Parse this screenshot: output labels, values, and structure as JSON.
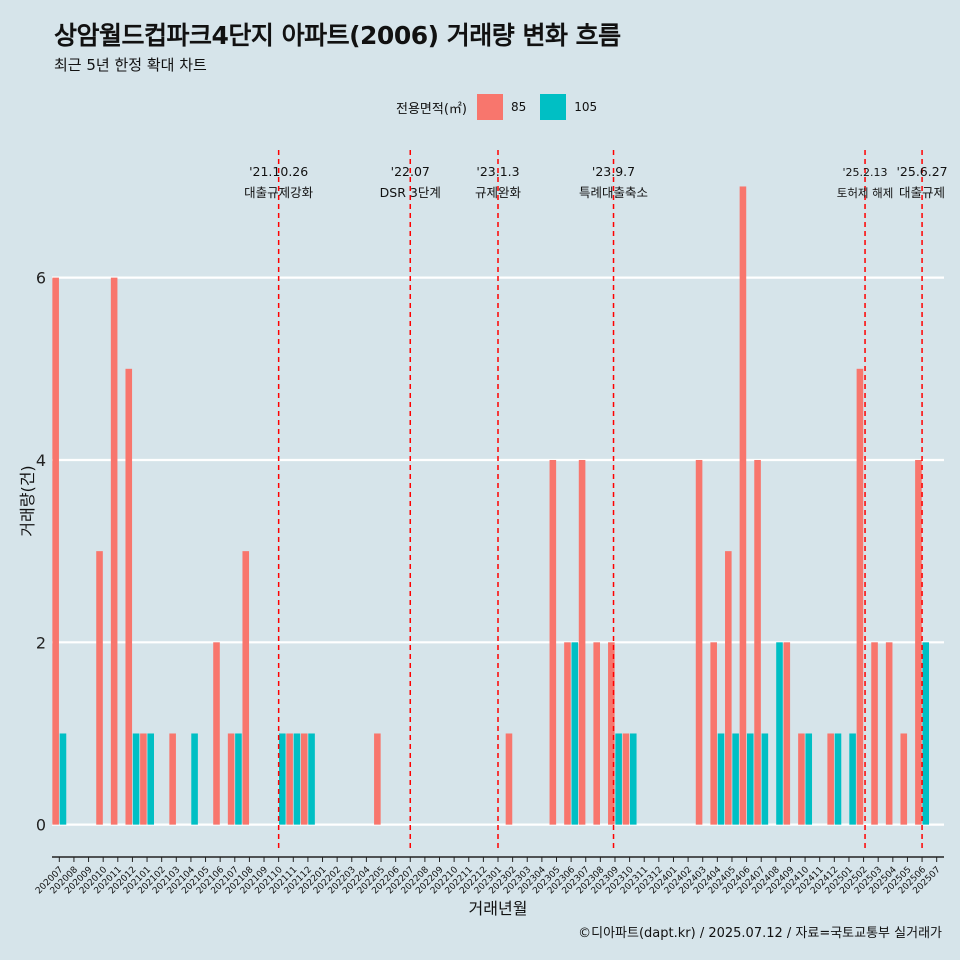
{
  "title": "상암월드컵파크4단지 아파트(2006) 거래량 변화 흐름",
  "subtitle": "최근 5년 한정 확대 차트",
  "caption": "©디아파트(dapt.kr) / 2025.07.12 / 자료=국토교통부 실거래가",
  "legend": {
    "title": "전용면적(㎡)",
    "items": [
      {
        "label": "85",
        "color": "#f8766d"
      },
      {
        "label": "105",
        "color": "#00bfc4"
      }
    ]
  },
  "chart_data": {
    "type": "bar",
    "title": "상암월드컵파크4단지 아파트(2006) 거래량 변화 흐름",
    "xlabel": "거래년월",
    "ylabel": "거래량(건)",
    "ylim": [
      -0.3,
      7.4
    ],
    "yticks": [
      0,
      2,
      4,
      6
    ],
    "categories": [
      "202007",
      "202008",
      "202009",
      "202010",
      "202011",
      "202012",
      "202101",
      "202102",
      "202103",
      "202104",
      "202105",
      "202106",
      "202107",
      "202108",
      "202109",
      "202110",
      "202111",
      "202112",
      "202201",
      "202202",
      "202203",
      "202204",
      "202205",
      "202206",
      "202207",
      "202208",
      "202209",
      "202210",
      "202211",
      "202212",
      "202301",
      "202302",
      "202303",
      "202304",
      "202305",
      "202306",
      "202307",
      "202308",
      "202309",
      "202310",
      "202311",
      "202312",
      "202401",
      "202402",
      "202403",
      "202404",
      "202405",
      "202406",
      "202407",
      "202408",
      "202409",
      "202410",
      "202411",
      "202412",
      "202501",
      "202502",
      "202503",
      "202504",
      "202505",
      "202506",
      "202507"
    ],
    "series": [
      {
        "name": "85",
        "color": "#f8766d",
        "values": [
          6,
          0,
          0,
          3,
          6,
          5,
          1,
          0,
          1,
          0,
          0,
          2,
          1,
          3,
          0,
          0,
          1,
          1,
          0,
          0,
          0,
          0,
          1,
          0,
          0,
          0,
          0,
          0,
          0,
          0,
          0,
          1,
          0,
          0,
          4,
          2,
          4,
          2,
          2,
          1,
          0,
          0,
          0,
          0,
          4,
          2,
          3,
          7,
          4,
          0,
          2,
          1,
          0,
          1,
          0,
          5,
          2,
          2,
          1,
          4,
          0
        ]
      },
      {
        "name": "105",
        "color": "#00bfc4",
        "values": [
          1,
          0,
          0,
          0,
          0,
          1,
          1,
          0,
          0,
          1,
          0,
          0,
          1,
          0,
          0,
          1,
          1,
          1,
          0,
          0,
          0,
          0,
          0,
          0,
          0,
          0,
          0,
          0,
          0,
          0,
          0,
          0,
          0,
          0,
          0,
          2,
          0,
          0,
          1,
          1,
          0,
          0,
          0,
          0,
          0,
          1,
          1,
          1,
          1,
          2,
          0,
          1,
          0,
          1,
          1,
          0,
          0,
          0,
          0,
          2,
          0
        ]
      }
    ],
    "events": [
      {
        "date": "'21.10.26",
        "label": "대출규제강화",
        "index": 15.5
      },
      {
        "date": "'22.07",
        "label": "DSR 3단계",
        "index": 24.5
      },
      {
        "date": "'23.1.3",
        "label": "규제완화",
        "index": 30.5
      },
      {
        "date": "'23.9.7",
        "label": "특례대출축소",
        "index": 38.4
      },
      {
        "date": "'25.2.13",
        "label": "토허제 해제",
        "index": 55.6
      },
      {
        "date": "'25.6.27",
        "label": "대출규제",
        "index": 59.5
      }
    ]
  }
}
